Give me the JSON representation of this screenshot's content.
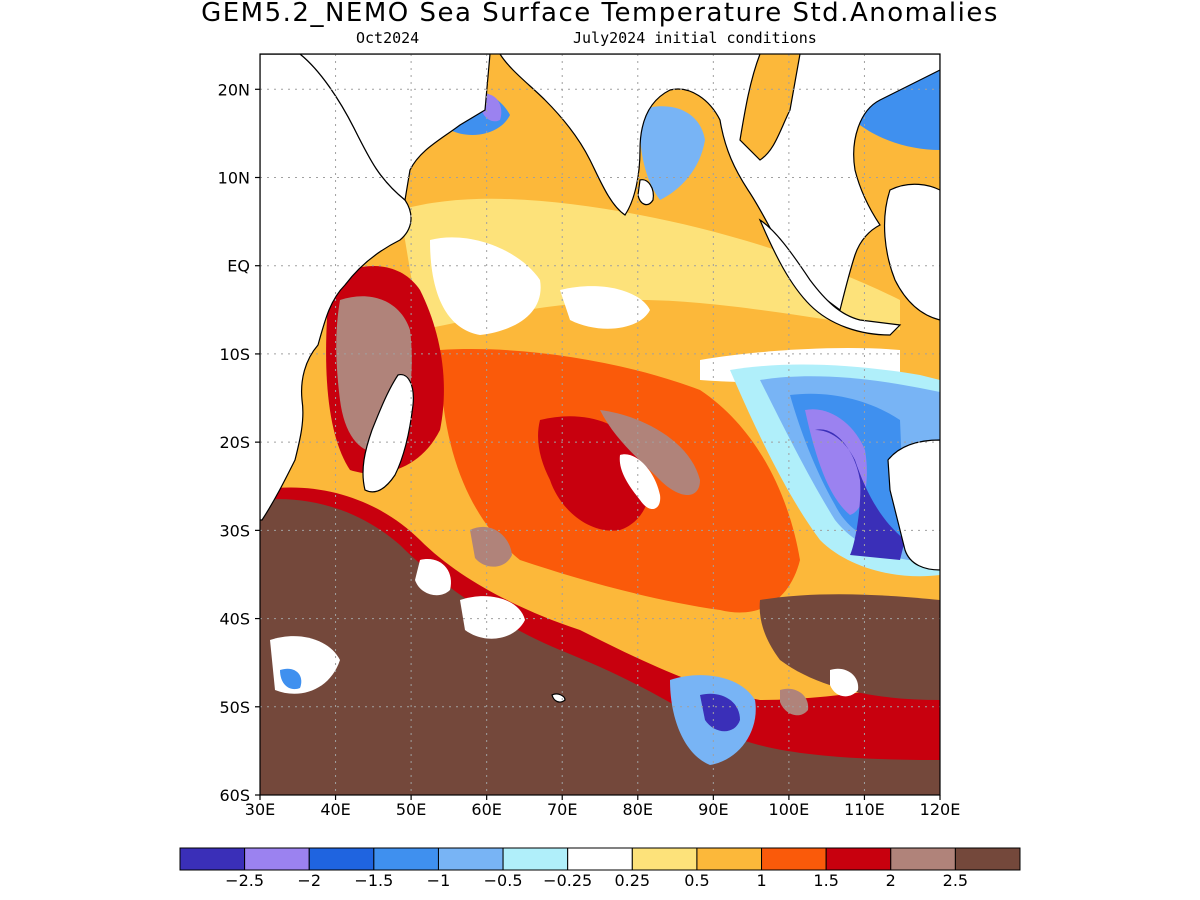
{
  "title": "GEM5.2_NEMO Sea Surface Temperature Std.Anomalies",
  "subtitle_left": "Oct2024",
  "subtitle_right": "July2024 initial conditions",
  "map": {
    "lon_range": [
      30,
      120
    ],
    "lat_range": [
      -60,
      24
    ],
    "lon_ticks": [
      {
        "v": 30,
        "label": "30E"
      },
      {
        "v": 40,
        "label": "40E"
      },
      {
        "v": 50,
        "label": "50E"
      },
      {
        "v": 60,
        "label": "60E"
      },
      {
        "v": 70,
        "label": "70E"
      },
      {
        "v": 80,
        "label": "80E"
      },
      {
        "v": 90,
        "label": "90E"
      },
      {
        "v": 100,
        "label": "100E"
      },
      {
        "v": 110,
        "label": "110E"
      },
      {
        "v": 120,
        "label": "120E"
      }
    ],
    "lat_ticks": [
      {
        "v": 20,
        "label": "20N"
      },
      {
        "v": 10,
        "label": "10N"
      },
      {
        "v": 0,
        "label": "EQ"
      },
      {
        "v": -10,
        "label": "10S"
      },
      {
        "v": -20,
        "label": "20S"
      },
      {
        "v": -30,
        "label": "30S"
      },
      {
        "v": -40,
        "label": "40S"
      },
      {
        "v": -50,
        "label": "50S"
      },
      {
        "v": -60,
        "label": "60S"
      }
    ]
  },
  "colorbar": {
    "colors": [
      "#3a2fb8",
      "#9b82f0",
      "#1f64e0",
      "#3f90ef",
      "#78b4f5",
      "#b0effa",
      "#ffffff",
      "#fde27a",
      "#fcb83a",
      "#fa5a0a",
      "#c8000e",
      "#b0837a",
      "#74483b"
    ],
    "labels": [
      "−2.5",
      "−2",
      "−1.5",
      "−1",
      "−0.5",
      "−0.25",
      "0.25",
      "0.5",
      "1",
      "1.5",
      "2",
      "2.5"
    ]
  }
}
